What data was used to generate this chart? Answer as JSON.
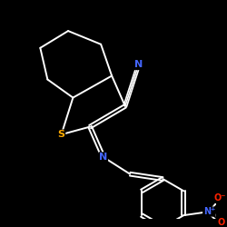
{
  "background_color": "#000000",
  "bond_color": "#ffffff",
  "atom_colors": {
    "N": "#4466ff",
    "S": "#ffaa00",
    "N_plus": "#4466ff",
    "O_minus": "#ff2200",
    "O": "#ff2200"
  },
  "font_size": 8,
  "line_width": 1.4,
  "figsize": [
    2.5,
    2.5
  ],
  "dpi": 100
}
